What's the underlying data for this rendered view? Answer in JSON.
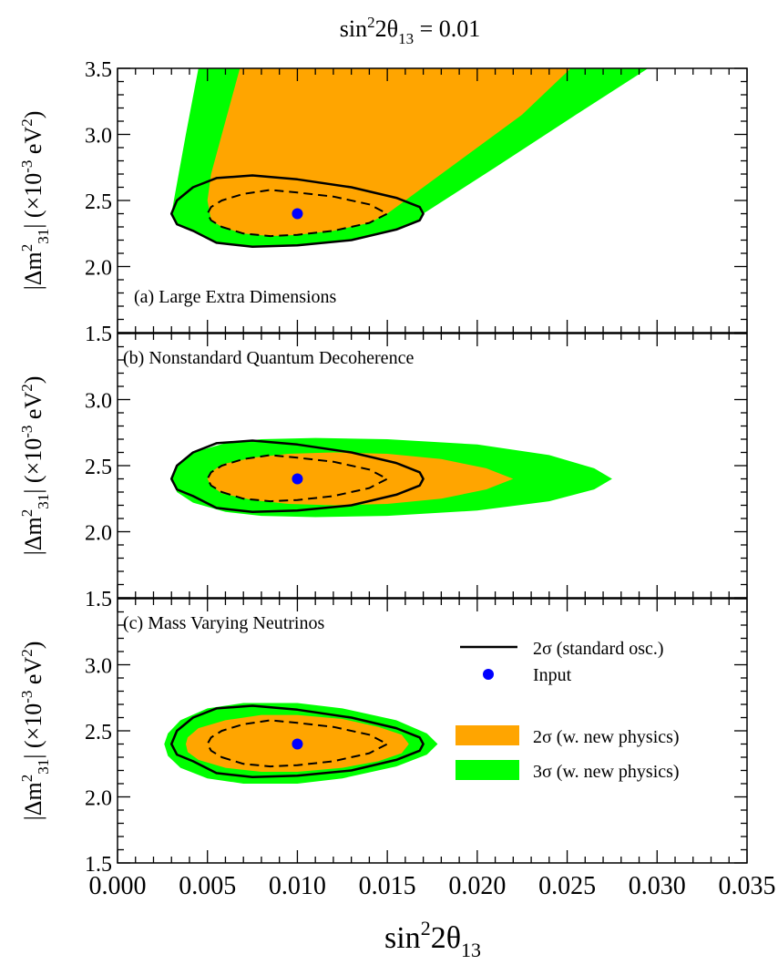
{
  "title": {
    "base": "sin",
    "sup": "2",
    "mid": "2θ",
    "sub": "13",
    "tail": " = 0.01"
  },
  "xlabel": {
    "base": "sin",
    "sup": "2",
    "mid": "2θ",
    "sub": "13"
  },
  "ylabel": {
    "pre": "|Δm",
    "sup": "2",
    "sub": "31",
    "mid": "| (×10",
    "sup2": "-3",
    "tail": " eV",
    "sup3": "2",
    "close": ")"
  },
  "legend": {
    "standard_label": "2σ (standard osc.)",
    "input_label": "Input",
    "two_sigma_label": "2σ (w. new physics)",
    "three_sigma_label": "3σ (w. new physics)"
  },
  "colors": {
    "two_sigma_fill": "#ffa500",
    "three_sigma_fill": "#00ff00",
    "input_marker": "#0000ff",
    "contour": "#000000"
  },
  "chart_data": {
    "type": "contour",
    "xlim": [
      0.0,
      0.035
    ],
    "ylim": [
      1.5,
      3.5
    ],
    "x_ticks": [
      "0.000",
      "0.005",
      "0.010",
      "0.015",
      "0.020",
      "0.025",
      "0.030",
      "0.035"
    ],
    "y_ticks": [
      "1.5",
      "2.0",
      "2.5",
      "3.0",
      "3.5"
    ],
    "input_point": {
      "x": 0.01,
      "y": 2.4
    },
    "standard_contours": {
      "solid_2sigma": [
        [
          0.0042,
          2.27
        ],
        [
          0.0055,
          2.18
        ],
        [
          0.0075,
          2.15
        ],
        [
          0.01,
          2.16
        ],
        [
          0.013,
          2.2
        ],
        [
          0.0155,
          2.28
        ],
        [
          0.0168,
          2.35
        ],
        [
          0.017,
          2.4
        ],
        [
          0.0168,
          2.45
        ],
        [
          0.0155,
          2.52
        ],
        [
          0.013,
          2.6
        ],
        [
          0.01,
          2.66
        ],
        [
          0.0075,
          2.69
        ],
        [
          0.0055,
          2.67
        ],
        [
          0.0042,
          2.6
        ],
        [
          0.0033,
          2.5
        ],
        [
          0.003,
          2.4
        ],
        [
          0.0033,
          2.32
        ]
      ],
      "dashed_1sigma": [
        [
          0.0058,
          2.3
        ],
        [
          0.007,
          2.25
        ],
        [
          0.0085,
          2.23
        ],
        [
          0.01,
          2.24
        ],
        [
          0.012,
          2.27
        ],
        [
          0.014,
          2.33
        ],
        [
          0.015,
          2.4
        ],
        [
          0.014,
          2.47
        ],
        [
          0.012,
          2.53
        ],
        [
          0.01,
          2.56
        ],
        [
          0.0085,
          2.58
        ],
        [
          0.007,
          2.55
        ],
        [
          0.0058,
          2.5
        ],
        [
          0.0052,
          2.45
        ],
        [
          0.005,
          2.4
        ],
        [
          0.0052,
          2.35
        ]
      ]
    },
    "panels": [
      {
        "id": "a",
        "label": "(a) Large Extra Dimensions",
        "three_sigma": [
          [
            0.0042,
            2.27
          ],
          [
            0.0055,
            2.18
          ],
          [
            0.0075,
            2.15
          ],
          [
            0.01,
            2.16
          ],
          [
            0.013,
            2.2
          ],
          [
            0.0155,
            2.28
          ],
          [
            0.0168,
            2.35
          ],
          [
            0.017,
            2.4
          ],
          [
            0.021,
            2.75
          ],
          [
            0.0255,
            3.15
          ],
          [
            0.0295,
            3.5
          ],
          [
            0.0045,
            3.5
          ],
          [
            0.0038,
            3.0
          ],
          [
            0.0034,
            2.7
          ],
          [
            0.003,
            2.4
          ],
          [
            0.0033,
            2.32
          ]
        ],
        "two_sigma": [
          [
            0.0052,
            2.35
          ],
          [
            0.0058,
            2.3
          ],
          [
            0.007,
            2.25
          ],
          [
            0.0085,
            2.23
          ],
          [
            0.01,
            2.24
          ],
          [
            0.012,
            2.27
          ],
          [
            0.014,
            2.33
          ],
          [
            0.015,
            2.4
          ],
          [
            0.019,
            2.8
          ],
          [
            0.0225,
            3.15
          ],
          [
            0.0252,
            3.5
          ],
          [
            0.0068,
            3.5
          ],
          [
            0.0058,
            3.0
          ],
          [
            0.0052,
            2.7
          ],
          [
            0.005,
            2.5
          ]
        ]
      },
      {
        "id": "b",
        "label": "(b) Nonstandard Quantum Decoherence",
        "three_sigma": [
          [
            0.0042,
            2.22
          ],
          [
            0.006,
            2.15
          ],
          [
            0.008,
            2.12
          ],
          [
            0.011,
            2.11
          ],
          [
            0.015,
            2.12
          ],
          [
            0.02,
            2.16
          ],
          [
            0.024,
            2.23
          ],
          [
            0.0265,
            2.32
          ],
          [
            0.0275,
            2.4
          ],
          [
            0.0265,
            2.48
          ],
          [
            0.024,
            2.58
          ],
          [
            0.02,
            2.66
          ],
          [
            0.015,
            2.7
          ],
          [
            0.011,
            2.71
          ],
          [
            0.008,
            2.7
          ],
          [
            0.006,
            2.67
          ],
          [
            0.0042,
            2.6
          ],
          [
            0.0033,
            2.5
          ],
          [
            0.003,
            2.4
          ],
          [
            0.0033,
            2.3
          ]
        ],
        "two_sigma": [
          [
            0.0058,
            2.29
          ],
          [
            0.0075,
            2.24
          ],
          [
            0.0095,
            2.21
          ],
          [
            0.012,
            2.2
          ],
          [
            0.015,
            2.21
          ],
          [
            0.018,
            2.25
          ],
          [
            0.0205,
            2.32
          ],
          [
            0.022,
            2.4
          ],
          [
            0.0205,
            2.48
          ],
          [
            0.018,
            2.55
          ],
          [
            0.015,
            2.59
          ],
          [
            0.012,
            2.6
          ],
          [
            0.0095,
            2.59
          ],
          [
            0.0075,
            2.56
          ],
          [
            0.0058,
            2.51
          ],
          [
            0.0052,
            2.45
          ],
          [
            0.005,
            2.4
          ],
          [
            0.0052,
            2.35
          ]
        ]
      },
      {
        "id": "c",
        "label": "(c) Mass Varying Neutrinos",
        "three_sigma": [
          [
            0.0035,
            2.22
          ],
          [
            0.005,
            2.14
          ],
          [
            0.007,
            2.1
          ],
          [
            0.01,
            2.1
          ],
          [
            0.0125,
            2.14
          ],
          [
            0.0155,
            2.23
          ],
          [
            0.0172,
            2.32
          ],
          [
            0.0178,
            2.4
          ],
          [
            0.0172,
            2.48
          ],
          [
            0.0155,
            2.58
          ],
          [
            0.0125,
            2.67
          ],
          [
            0.01,
            2.71
          ],
          [
            0.007,
            2.71
          ],
          [
            0.005,
            2.67
          ],
          [
            0.0035,
            2.58
          ],
          [
            0.0028,
            2.48
          ],
          [
            0.0026,
            2.4
          ],
          [
            0.0028,
            2.31
          ]
        ],
        "two_sigma": [
          [
            0.0045,
            2.28
          ],
          [
            0.006,
            2.22
          ],
          [
            0.008,
            2.19
          ],
          [
            0.01,
            2.19
          ],
          [
            0.0125,
            2.22
          ],
          [
            0.0145,
            2.27
          ],
          [
            0.0158,
            2.33
          ],
          [
            0.0162,
            2.4
          ],
          [
            0.0158,
            2.47
          ],
          [
            0.0145,
            2.53
          ],
          [
            0.0125,
            2.59
          ],
          [
            0.01,
            2.62
          ],
          [
            0.008,
            2.62
          ],
          [
            0.006,
            2.58
          ],
          [
            0.0045,
            2.52
          ],
          [
            0.0039,
            2.45
          ],
          [
            0.0038,
            2.4
          ],
          [
            0.0039,
            2.34
          ]
        ]
      }
    ]
  }
}
